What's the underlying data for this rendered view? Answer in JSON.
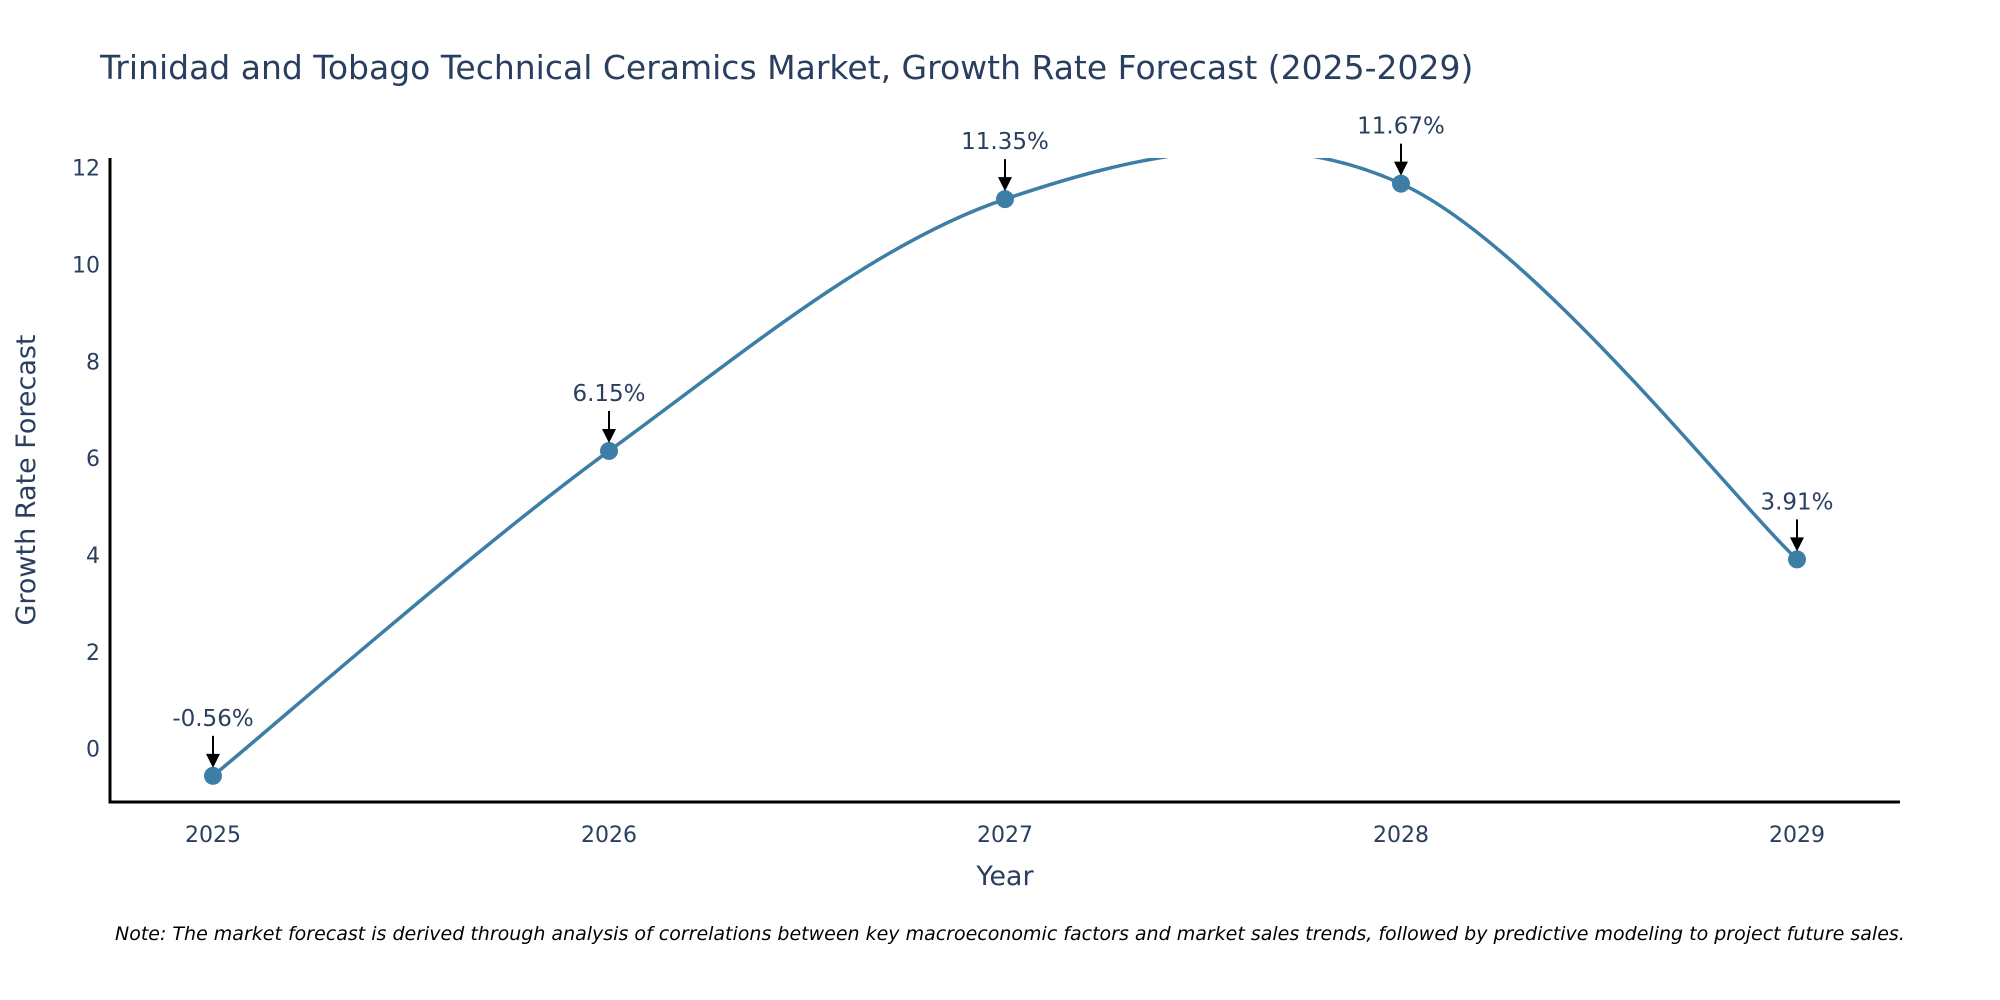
{
  "chart_data": {
    "type": "line",
    "title": "Trinidad and Tobago Technical Ceramics Market, Growth Rate Forecast (2025-2029)",
    "xlabel": "Year",
    "ylabel": "Growth Rate Forecast",
    "categories": [
      "2025",
      "2026",
      "2027",
      "2028",
      "2029"
    ],
    "series": [
      {
        "name": "Growth Rate Forecast",
        "values": [
          -0.56,
          6.15,
          11.35,
          11.67,
          3.91
        ],
        "labels": [
          "-0.56%",
          "6.15%",
          "11.35%",
          "11.67%",
          "3.91%"
        ],
        "line_shape": "spline"
      }
    ],
    "ylim": [
      -1.1,
      12.2
    ],
    "yticks": [
      0,
      2,
      4,
      6,
      8,
      10,
      12
    ],
    "ytick_labels": [
      "0",
      "2",
      "4",
      "6",
      "8",
      "10",
      "12"
    ],
    "grid": false,
    "annotations_arrows": true,
    "note": "Note: The market forecast is derived through analysis of correlations between key macroeconomic factors and market sales trends, followed by predictive modeling to project future sales."
  },
  "colors": {
    "line": "#3d7ea6",
    "marker": "#3d7ea6",
    "text": "#2a3f5f",
    "axis": "#000000",
    "arrow": "#000000"
  }
}
